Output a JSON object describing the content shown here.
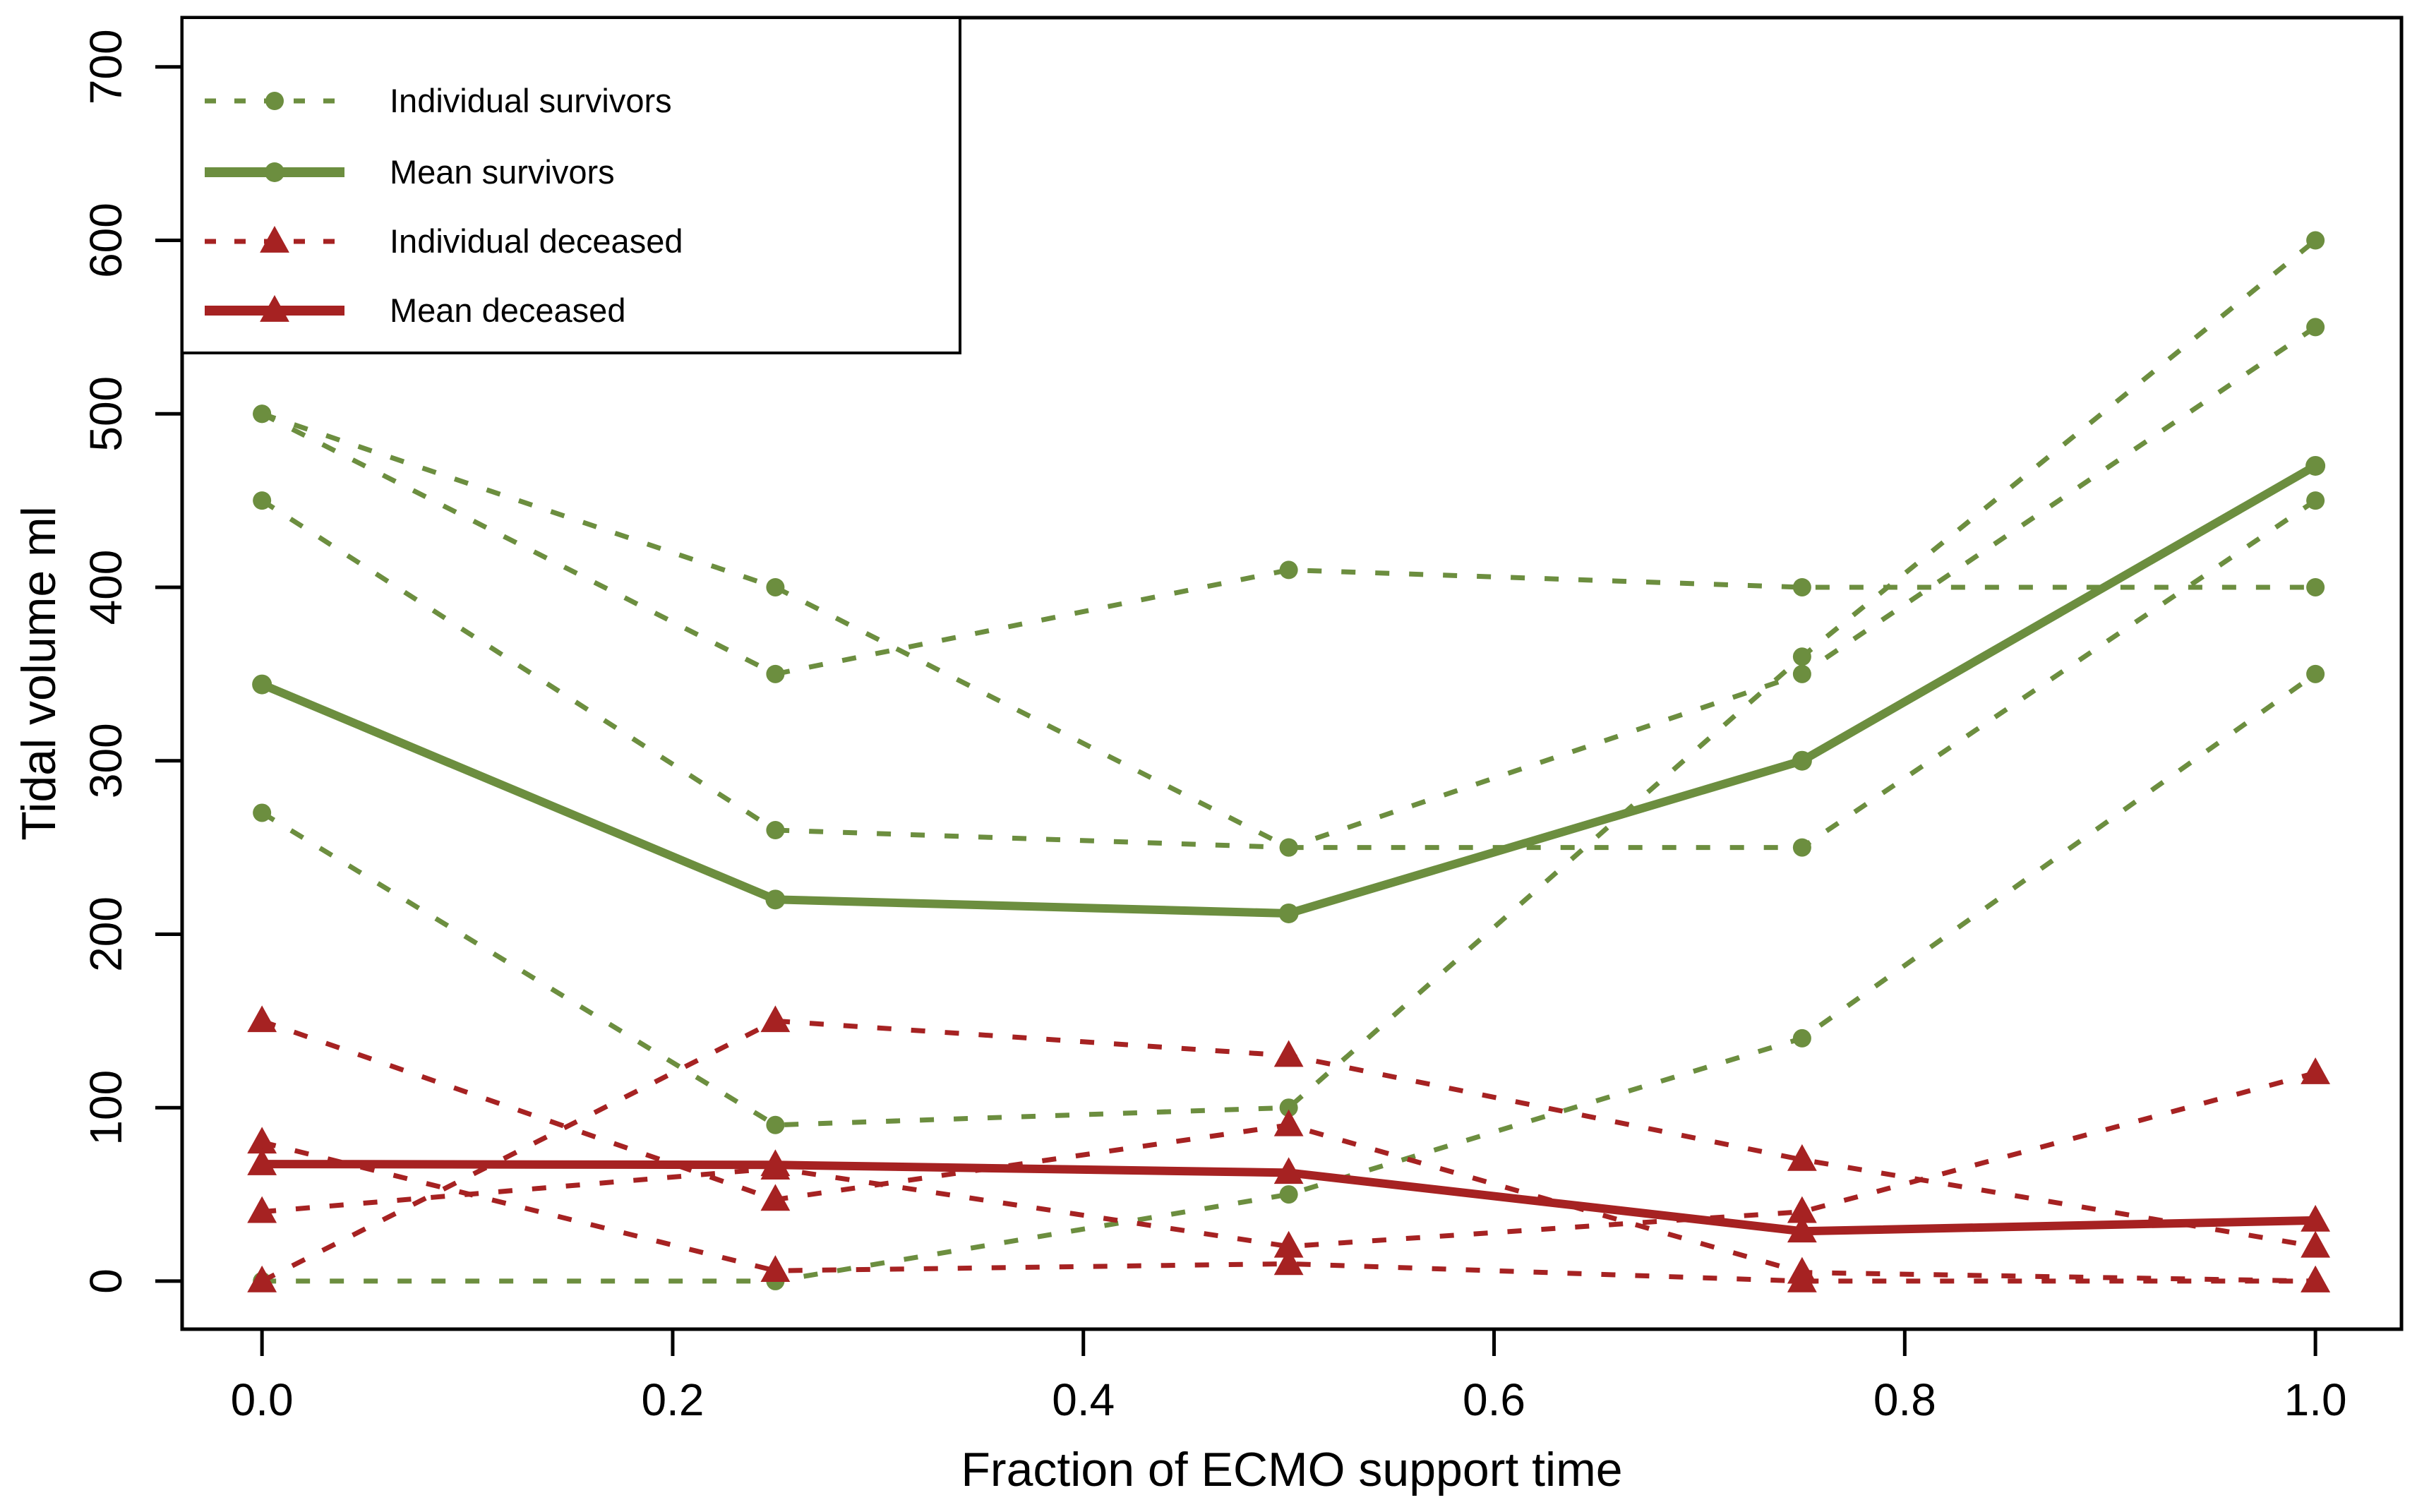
{
  "chart_data": {
    "type": "line",
    "title": "",
    "xlabel": "Fraction of ECMO support time",
    "ylabel": "Tidal volume ml",
    "x": [
      0,
      0.25,
      0.5,
      0.75,
      1.0
    ],
    "xlim": [
      -0.0389,
      1.0419
    ],
    "ylim": [
      -27.7,
      728.4
    ],
    "x_ticks": {
      "values": [
        0.0,
        0.2,
        0.4,
        0.6,
        0.8,
        1.0
      ],
      "labels": [
        "0.0",
        "0.2",
        "0.4",
        "0.6",
        "0.8",
        "1.0"
      ]
    },
    "y_ticks": {
      "values": [
        0,
        100,
        200,
        300,
        400,
        500,
        600,
        700
      ],
      "labels": [
        "0",
        "100",
        "200",
        "300",
        "400",
        "500",
        "600",
        "700"
      ]
    },
    "grid": false,
    "legend_position": "top-left",
    "colors": {
      "survivor_green": "#6C8E3F",
      "deceased_red": "#A62222",
      "axis_black": "#000000",
      "background": "#ffffff"
    },
    "series": [
      {
        "id": "survivor-individual-1",
        "group": "survivor",
        "style": "dashed",
        "marker": "circle",
        "values": [
          500,
          400,
          250,
          250,
          450
        ]
      },
      {
        "id": "survivor-individual-2",
        "group": "survivor",
        "style": "dashed",
        "marker": "circle",
        "values": [
          500,
          350,
          410,
          400,
          400
        ]
      },
      {
        "id": "survivor-individual-3",
        "group": "survivor",
        "style": "dashed",
        "marker": "circle",
        "values": [
          450,
          260,
          250,
          350,
          550
        ]
      },
      {
        "id": "survivor-individual-4",
        "group": "survivor",
        "style": "dashed",
        "marker": "circle",
        "values": [
          270,
          90,
          100,
          360,
          600
        ]
      },
      {
        "id": "survivor-individual-5",
        "group": "survivor",
        "style": "dashed",
        "marker": "circle",
        "values": [
          0,
          0,
          50,
          140,
          350
        ]
      },
      {
        "id": "deceased-individual-1",
        "group": "deceased",
        "style": "dashed",
        "marker": "triangle",
        "values": [
          150,
          47,
          90,
          5,
          0
        ]
      },
      {
        "id": "deceased-individual-2",
        "group": "deceased",
        "style": "dashed",
        "marker": "triangle",
        "values": [
          80,
          6,
          10,
          0,
          0
        ]
      },
      {
        "id": "deceased-individual-3",
        "group": "deceased",
        "style": "dashed",
        "marker": "triangle",
        "values": [
          40,
          65,
          20,
          40,
          120
        ]
      },
      {
        "id": "deceased-individual-4",
        "group": "deceased",
        "style": "dashed",
        "marker": "triangle",
        "values": [
          0,
          150,
          130,
          70,
          20
        ]
      },
      {
        "id": "survivor-mean",
        "group": "survivor",
        "style": "solid",
        "marker": "circle",
        "values": [
          344,
          220,
          212,
          300,
          470
        ]
      },
      {
        "id": "deceased-mean",
        "group": "deceased",
        "style": "solid",
        "marker": "triangle",
        "values": [
          67.5,
          67,
          62.5,
          28.75,
          35
        ]
      }
    ],
    "legend": [
      {
        "label": "Individual survivors",
        "group": "survivor",
        "style": "dashed",
        "marker": "circle"
      },
      {
        "label": "Mean survivors",
        "group": "survivor",
        "style": "solid",
        "marker": "circle"
      },
      {
        "label": "Individual deceased",
        "group": "deceased",
        "style": "dashed",
        "marker": "triangle"
      },
      {
        "label": "Mean deceased",
        "group": "deceased",
        "style": "solid",
        "marker": "triangle"
      }
    ]
  }
}
